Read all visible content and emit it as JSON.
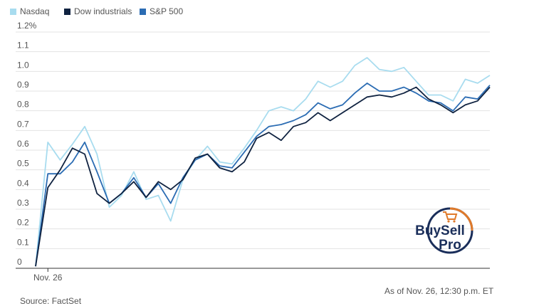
{
  "legend": [
    {
      "name": "Nasdaq",
      "color": "#a8dcef"
    },
    {
      "name": "Dow industrials",
      "color": "#0f2240"
    },
    {
      "name": "S&P 500",
      "color": "#2b6cb3"
    }
  ],
  "chart_data": {
    "type": "line",
    "title": "",
    "xlabel": "",
    "ylabel": "",
    "ylim": [
      0,
      1.2
    ],
    "y_ticks": [
      "1.2%",
      "1.1",
      "1.0",
      "0.9",
      "0.8",
      "0.7",
      "0.6",
      "0.5",
      "0.4",
      "0.3",
      "0.2",
      "0.1",
      "0"
    ],
    "y_tick_values": [
      1.2,
      1.1,
      1.0,
      0.9,
      0.8,
      0.7,
      0.6,
      0.5,
      0.4,
      0.3,
      0.2,
      0.1,
      0
    ],
    "x_tick_label": "Nov. 26",
    "x_tick_index": 1,
    "series": [
      {
        "name": "Nasdaq",
        "color": "#a8dcef",
        "values": [
          0.01,
          0.64,
          0.55,
          0.63,
          0.72,
          0.58,
          0.31,
          0.37,
          0.49,
          0.35,
          0.37,
          0.24,
          0.45,
          0.55,
          0.62,
          0.54,
          0.53,
          0.61,
          0.7,
          0.8,
          0.82,
          0.8,
          0.86,
          0.95,
          0.92,
          0.95,
          1.03,
          1.07,
          1.01,
          1.0,
          1.02,
          0.95,
          0.88,
          0.88,
          0.85,
          0.96,
          0.94,
          0.98
        ]
      },
      {
        "name": "Dow industrials",
        "color": "#0f2240",
        "values": [
          0.01,
          0.41,
          0.5,
          0.61,
          0.58,
          0.38,
          0.33,
          0.38,
          0.44,
          0.36,
          0.44,
          0.4,
          0.45,
          0.56,
          0.58,
          0.51,
          0.49,
          0.54,
          0.66,
          0.69,
          0.65,
          0.72,
          0.74,
          0.79,
          0.75,
          0.79,
          0.83,
          0.87,
          0.88,
          0.87,
          0.89,
          0.92,
          0.86,
          0.83,
          0.79,
          0.83,
          0.85,
          0.92
        ]
      },
      {
        "name": "S&P 500",
        "color": "#2b6cb3",
        "values": [
          0.01,
          0.48,
          0.48,
          0.54,
          0.64,
          0.49,
          0.33,
          0.38,
          0.46,
          0.36,
          0.43,
          0.33,
          0.46,
          0.55,
          0.58,
          0.52,
          0.51,
          0.59,
          0.67,
          0.72,
          0.73,
          0.75,
          0.78,
          0.84,
          0.81,
          0.83,
          0.89,
          0.94,
          0.9,
          0.9,
          0.92,
          0.89,
          0.85,
          0.84,
          0.8,
          0.87,
          0.86,
          0.93
        ]
      }
    ]
  },
  "footer": {
    "source": "Source: FactSet",
    "as_of": "As of Nov. 26, 12:30 p.m. ET"
  },
  "logo": {
    "line1": "BuySell",
    "line2": "Pro",
    "ring_color": "#1a2e5a",
    "accent_color": "#e07a2a"
  }
}
